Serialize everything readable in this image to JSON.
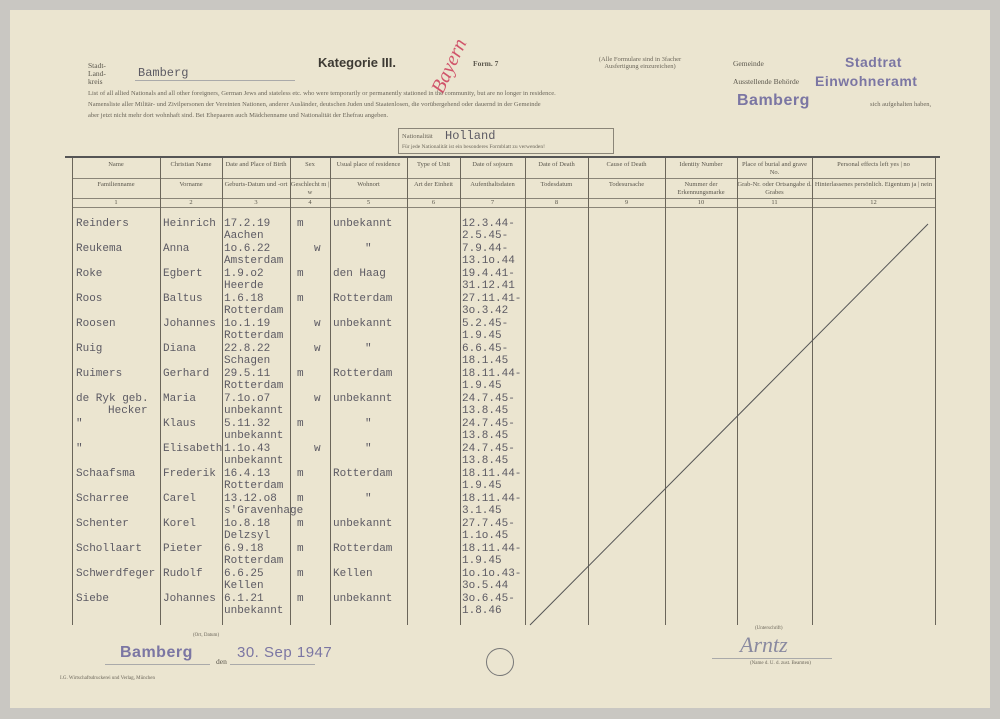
{
  "header": {
    "stadt_kreis_label": "Stadt- Land- kreis",
    "kreis_value": "Bamberg",
    "category": "Kategorie III.",
    "pencil_note": "Bayern",
    "form": "Form. 7",
    "copy_note": "(Alle Formulare sind in 3facher Ausfertigung einzureichen)",
    "gemeinde_label": "Gemeinde",
    "gemeinde_value": "Stadtrat",
    "behoerde_label": "Ausstellende Behörde",
    "behoerde_value": "Einwohneramt",
    "intro_en": "List of all allied Nationals and all other foreigners, German Jews and stateless etc. who were temporarily or permanently stationed in the community, but are no longer in residence.",
    "intro_de_1": "Namensliste aller Militär- und Zivilpersonen der Vereinten Nationen, anderer Ausländer, deutschen Juden und Staatenlosen, die vorübergehend oder dauernd in der Gemeinde",
    "intro_stamp": "Bamberg",
    "intro_de_1b": "sich aufgehalten haben,",
    "intro_de_2": "aber jetzt nicht mehr dort wohnhaft sind. Bei Ehepaaren auch Mädchenname und Nationalität der Ehefrau angeben.",
    "nationality_label": "Nationalität",
    "nationality_value": "Holland",
    "nationality_note": "Für jede Nationalität ist ein besonderes Formblatt zu verwenden!"
  },
  "columns": [
    {
      "en": "Name",
      "de": "Familienname",
      "no": "1"
    },
    {
      "en": "Christian Name",
      "de": "Vorname",
      "no": "2"
    },
    {
      "en": "Date and Place of Birth",
      "de": "Geburts-Datum und -ort",
      "no": "3"
    },
    {
      "en": "Sex",
      "de": "Geschlecht  m | w",
      "no": "4"
    },
    {
      "en": "Usual place of residence",
      "de": "Wohnort",
      "no": "5"
    },
    {
      "en": "Type of Unit",
      "de": "Art der Einheit",
      "no": "6"
    },
    {
      "en": "Date of sojourn",
      "de": "Aufenthaltsdaten",
      "no": "7"
    },
    {
      "en": "Date of Death",
      "de": "Todesdatum",
      "no": "8"
    },
    {
      "en": "Cause of Death",
      "de": "Todesursache",
      "no": "9"
    },
    {
      "en": "Identity Number",
      "de": "Nummer der Erkennungsmarke",
      "no": "10"
    },
    {
      "en": "Place of burial and grave No.",
      "de": "Grab-Nr. oder Ortsangabe d. Grabes",
      "no": "11"
    },
    {
      "en": "Personal effects left  yes | no",
      "de": "Hinterlassenes persönlich. Eigentum  ja | nein",
      "no": "12"
    }
  ],
  "rows": [
    {
      "name": "Reinders",
      "first": "Heinrich",
      "birth_date": "17.2.19",
      "birth_place": "Aachen",
      "m": "m",
      "w": "",
      "residence": "unbekannt",
      "from": "12.3.44-",
      "to": "2.5.45-"
    },
    {
      "name": "Reukema",
      "first": "Anna",
      "birth_date": "1o.6.22",
      "birth_place": "Amsterdam",
      "m": "",
      "w": "w",
      "residence": "\"",
      "from": "7.9.44-",
      "to": "13.1o.44"
    },
    {
      "name": "Roke",
      "first": "Egbert",
      "birth_date": "1.9.o2",
      "birth_place": "Heerde",
      "m": "m",
      "w": "",
      "residence": "den Haag",
      "from": "19.4.41-",
      "to": "31.12.41"
    },
    {
      "name": "Roos",
      "first": "Baltus",
      "birth_date": "1.6.18",
      "birth_place": "Rotterdam",
      "m": "m",
      "w": "",
      "residence": "Rotterdam",
      "from": "27.11.41-",
      "to": "3o.3.42"
    },
    {
      "name": "Roosen",
      "first": "Johannes",
      "birth_date": "1o.1.19",
      "birth_place": "Rotterdam",
      "m": "",
      "w": "w",
      "residence": "unbekannt",
      "from": "5.2.45-",
      "to": "1.9.45"
    },
    {
      "name": "Ruig",
      "first": "Diana",
      "birth_date": "22.8.22",
      "birth_place": "Schagen",
      "m": "",
      "w": "w",
      "residence": "\"",
      "from": "6.6.45-",
      "to": "18.1.45"
    },
    {
      "name": "Ruimers",
      "first": "Gerhard",
      "birth_date": "29.5.11",
      "birth_place": "Rotterdam",
      "m": "m",
      "w": "",
      "residence": "Rotterdam",
      "from": "18.11.44-",
      "to": "1.9.45"
    },
    {
      "name": "de Ryk  geb.",
      "name2": "Hecker",
      "first": "Maria",
      "birth_date": "7.1o.o7",
      "birth_place": "unbekannt",
      "m": "",
      "w": "w",
      "residence": "unbekannt",
      "from": "24.7.45-",
      "to": "13.8.45"
    },
    {
      "name": "\"",
      "first": "Klaus",
      "birth_date": "5.11.32",
      "birth_place": "unbekannt",
      "m": "m",
      "w": "",
      "residence": "\"",
      "from": "24.7.45-",
      "to": "13.8.45"
    },
    {
      "name": "\"",
      "first": "Elisabeth",
      "birth_date": "1.1o.43",
      "birth_place": "unbekannt",
      "m": "",
      "w": "w",
      "residence": "\"",
      "from": "24.7.45-",
      "to": "13.8.45"
    },
    {
      "name": "Schaafsma",
      "first": "Frederik",
      "birth_date": "16.4.13",
      "birth_place": "Rotterdam",
      "m": "m",
      "w": "",
      "residence": "Rotterdam",
      "from": "18.11.44-",
      "to": "1.9.45"
    },
    {
      "name": "Scharree",
      "first": "Carel",
      "birth_date": "13.12.o8",
      "birth_place": "s'Gravenhage",
      "m": "m",
      "w": "",
      "residence": "\"",
      "from": "18.11.44-",
      "to": "3.1.45"
    },
    {
      "name": "Schenter",
      "first": "Korel",
      "birth_date": "1o.8.18",
      "birth_place": "Delzsyl",
      "m": "m",
      "w": "",
      "residence": "unbekannt",
      "from": "27.7.45-",
      "to": "1.1o.45"
    },
    {
      "name": "Schollaart",
      "first": "Pieter",
      "birth_date": "6.9.18",
      "birth_place": "Rotterdam",
      "m": "m",
      "w": "",
      "residence": "Rotterdam",
      "from": "18.11.44-",
      "to": "1.9.45"
    },
    {
      "name": "Schwerdfeger",
      "first": "Rudolf",
      "birth_date": "6.6.25",
      "birth_place": "Kellen",
      "m": "m",
      "w": "",
      "residence": "Kellen",
      "from": "1o.1o.43-",
      "to": "3o.5.44"
    },
    {
      "name": "Siebe",
      "first": "Johannes",
      "birth_date": "6.1.21",
      "birth_place": "unbekannt",
      "m": "m",
      "w": "",
      "residence": "unbekannt",
      "from": "3o.6.45-",
      "to": "1.8.46"
    }
  ],
  "footer": {
    "place_label": "(Ort, Datum)",
    "place_value": "Bamberg",
    "den": "den",
    "date_value": "30. Sep 1947",
    "sig_label_top": "(Unterschrift)",
    "signature": "Arntz",
    "sig_label_bottom": "(Name d. U. d. zust. Beamten)",
    "printer": "I.G. Wirtschaftsdruckerei und Verlag, München"
  },
  "colors": {
    "paper": "#ebe5d0",
    "stamp": "#7b76a3",
    "pencil": "#d0546a",
    "typewriter": "#5c5a63"
  }
}
